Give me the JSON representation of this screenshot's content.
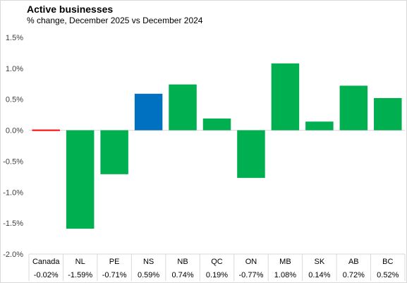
{
  "chart_data": {
    "type": "bar",
    "title": "Active businesses",
    "subtitle": "% change, December  2025 vs December  2024",
    "categories": [
      "Canada",
      "NL",
      "PE",
      "NS",
      "NB",
      "QC",
      "ON",
      "MB",
      "SK",
      "AB",
      "BC"
    ],
    "values": [
      -0.02,
      -1.59,
      -0.71,
      0.59,
      0.74,
      0.19,
      -0.77,
      1.08,
      0.14,
      0.72,
      0.52
    ],
    "value_labels": [
      "-0.02%",
      "-1.59%",
      "-0.71%",
      "0.59%",
      "0.74%",
      "0.19%",
      "-0.77%",
      "1.08%",
      "0.14%",
      "0.72%",
      "0.52%"
    ],
    "ylim": [
      -2.0,
      1.5
    ],
    "yticks": [
      1.5,
      1.0,
      0.5,
      0.0,
      -0.5,
      -1.0,
      -1.5,
      -2.0
    ],
    "ytick_labels": [
      "1.5%",
      "1.0%",
      "0.5%",
      "0.0%",
      "-0.5%",
      "-1.0%",
      "-1.5%",
      "-2.0%"
    ],
    "xlabel": "",
    "ylabel": "",
    "grid": false,
    "legend": "none",
    "colors": {
      "default": "#00b050",
      "highlight_ns": "#0070c0",
      "highlight_canada": "#ff0000",
      "axis": "#d9d9d9"
    },
    "bar_colors": [
      "#ff0000",
      "#00b050",
      "#00b050",
      "#0070c0",
      "#00b050",
      "#00b050",
      "#00b050",
      "#00b050",
      "#00b050",
      "#00b050",
      "#00b050"
    ]
  }
}
